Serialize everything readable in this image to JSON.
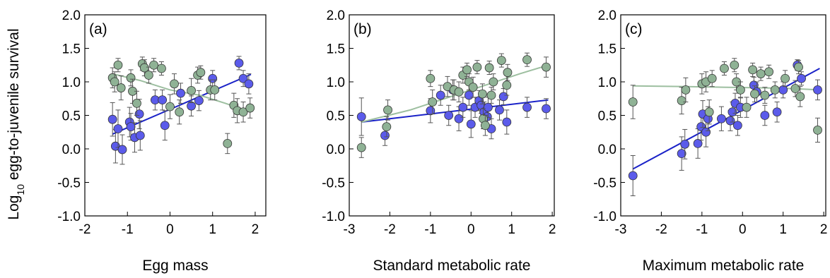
{
  "figure": {
    "ylabel_main": "Log",
    "ylabel_sub": "10",
    "ylabel_rest": " egg-to-juvenile survival"
  },
  "colors": {
    "blue_fill": "#5b5bea",
    "blue_line": "#1a22c8",
    "green_fill": "#8fb295",
    "green_line": "#9dbfa0",
    "errorbar": "#555555"
  },
  "chart_data": [
    {
      "type": "scatter",
      "panel_label": "(a)",
      "xlabel": "Egg mass",
      "xlim": [
        -2,
        2.25
      ],
      "ylim": [
        -1.0,
        2.0
      ],
      "xticks": [
        -2,
        -1,
        0,
        1,
        2
      ],
      "yticks": [
        -1.0,
        -0.5,
        0.0,
        0.5,
        1.0,
        1.5,
        2.0
      ],
      "series": [
        {
          "color": "blue",
          "points": [
            {
              "x": -1.35,
              "y": 0.44,
              "err": 0.25
            },
            {
              "x": -1.28,
              "y": 0.04,
              "err": 0.25
            },
            {
              "x": -1.22,
              "y": 0.3,
              "err": 0.28
            },
            {
              "x": -1.12,
              "y": -0.01,
              "err": 0.22
            },
            {
              "x": -0.95,
              "y": 0.4,
              "err": 0.22
            },
            {
              "x": -0.92,
              "y": 0.33,
              "err": 0.2
            },
            {
              "x": -0.83,
              "y": 0.17,
              "err": 0.22
            },
            {
              "x": -0.72,
              "y": 0.52,
              "err": 0.22
            },
            {
              "x": -0.7,
              "y": 0.2,
              "err": 0.22
            },
            {
              "x": -0.35,
              "y": 0.73,
              "err": 0.15
            },
            {
              "x": -0.18,
              "y": 0.73,
              "err": 0.15
            },
            {
              "x": -0.12,
              "y": 0.35,
              "err": 0.22
            },
            {
              "x": 0.25,
              "y": 0.83,
              "err": 0.15
            },
            {
              "x": 0.5,
              "y": 0.64,
              "err": 0.15
            },
            {
              "x": 0.68,
              "y": 0.72,
              "err": 0.15
            },
            {
              "x": 1.0,
              "y": 1.05,
              "err": 0.12
            },
            {
              "x": 1.62,
              "y": 1.28,
              "err": 0.1
            },
            {
              "x": 1.72,
              "y": 1.05,
              "err": 0.12
            },
            {
              "x": 1.85,
              "y": 0.97,
              "err": 0.15
            }
          ],
          "fit": {
            "x": [
              -1.35,
              1.9
            ],
            "y": [
              0.22,
              1.11
            ]
          }
        },
        {
          "color": "green",
          "points": [
            {
              "x": -1.35,
              "y": 1.06,
              "err": 0.15
            },
            {
              "x": -1.3,
              "y": 1.0,
              "err": 0.15
            },
            {
              "x": -1.22,
              "y": 1.25,
              "err": 0.1
            },
            {
              "x": -1.15,
              "y": 0.91,
              "err": 0.18
            },
            {
              "x": -0.92,
              "y": 1.06,
              "err": 0.12
            },
            {
              "x": -0.88,
              "y": 0.86,
              "err": 0.18
            },
            {
              "x": -0.78,
              "y": 0.68,
              "err": 0.18
            },
            {
              "x": -0.65,
              "y": 1.27,
              "err": 0.1
            },
            {
              "x": -0.6,
              "y": 1.21,
              "err": 0.12
            },
            {
              "x": -0.5,
              "y": 1.1,
              "err": 0.12
            },
            {
              "x": -0.38,
              "y": 1.25,
              "err": 0.1
            },
            {
              "x": -0.2,
              "y": 1.2,
              "err": 0.1
            },
            {
              "x": 0.0,
              "y": 0.63,
              "err": 0.18
            },
            {
              "x": 0.1,
              "y": 0.97,
              "err": 0.15
            },
            {
              "x": 0.22,
              "y": 0.55,
              "err": 0.18
            },
            {
              "x": 0.5,
              "y": 0.87,
              "err": 0.18
            },
            {
              "x": 0.65,
              "y": 1.1,
              "err": 0.12
            },
            {
              "x": 0.72,
              "y": 1.14,
              "err": 0.1
            },
            {
              "x": 0.95,
              "y": 0.88,
              "err": 0.15
            },
            {
              "x": 1.05,
              "y": 0.88,
              "err": 0.15
            },
            {
              "x": 1.35,
              "y": 0.08,
              "err": 0.15
            },
            {
              "x": 1.5,
              "y": 0.65,
              "err": 0.18
            },
            {
              "x": 1.58,
              "y": 0.57,
              "err": 0.18
            },
            {
              "x": 1.72,
              "y": 0.55,
              "err": 0.15
            },
            {
              "x": 1.88,
              "y": 0.61,
              "err": 0.15
            }
          ],
          "fit": {
            "x": [
              -1.35,
              -0.7,
              0.0,
              0.7,
              1.3,
              1.9
            ],
            "y": [
              1.12,
              1.02,
              0.88,
              0.8,
              0.68,
              0.55
            ]
          }
        }
      ]
    },
    {
      "type": "scatter",
      "panel_label": "(b)",
      "xlabel": "Standard metabolic rate",
      "xlim": [
        -3,
        2.05
      ],
      "ylim": [
        -1.0,
        2.0
      ],
      "xticks": [
        -3,
        -2,
        -1,
        0,
        1,
        2
      ],
      "yticks": [
        -1.0,
        -0.5,
        0.0,
        0.5,
        1.0,
        1.5,
        2.0
      ],
      "series": [
        {
          "color": "blue",
          "points": [
            {
              "x": -2.7,
              "y": 0.48,
              "err": 0.28
            },
            {
              "x": -2.12,
              "y": 0.2,
              "err": 0.15
            },
            {
              "x": -1.0,
              "y": 0.57,
              "err": 0.18
            },
            {
              "x": -0.75,
              "y": 0.8,
              "err": 0.15
            },
            {
              "x": -0.55,
              "y": 0.5,
              "err": 0.15
            },
            {
              "x": -0.45,
              "y": 0.88,
              "err": 0.15
            },
            {
              "x": -0.3,
              "y": 0.45,
              "err": 0.18
            },
            {
              "x": -0.2,
              "y": 0.62,
              "err": 0.15
            },
            {
              "x": -0.05,
              "y": 0.8,
              "err": 0.15
            },
            {
              "x": 0.0,
              "y": 0.37,
              "err": 0.2
            },
            {
              "x": 0.1,
              "y": 0.62,
              "err": 0.15
            },
            {
              "x": 0.2,
              "y": 0.72,
              "err": 0.15
            },
            {
              "x": 0.25,
              "y": 0.65,
              "err": 0.12
            },
            {
              "x": 0.32,
              "y": 0.55,
              "err": 0.15
            },
            {
              "x": 0.4,
              "y": 0.48,
              "err": 0.15
            },
            {
              "x": 0.42,
              "y": 0.62,
              "err": 0.15
            },
            {
              "x": 0.5,
              "y": 0.3,
              "err": 0.15
            },
            {
              "x": 0.7,
              "y": 0.58,
              "err": 0.15
            },
            {
              "x": 0.8,
              "y": 0.78,
              "err": 0.12
            },
            {
              "x": 0.88,
              "y": 0.4,
              "err": 0.18
            },
            {
              "x": 1.38,
              "y": 0.62,
              "err": 0.15
            },
            {
              "x": 1.85,
              "y": 0.6,
              "err": 0.15
            }
          ],
          "fit": {
            "x": [
              -2.7,
              1.9
            ],
            "y": [
              0.4,
              0.73
            ]
          }
        },
        {
          "color": "green",
          "points": [
            {
              "x": -2.7,
              "y": 0.02,
              "err": 0.15
            },
            {
              "x": -2.08,
              "y": 0.33,
              "err": 0.15
            },
            {
              "x": -2.05,
              "y": 0.58,
              "err": 0.15
            },
            {
              "x": -1.0,
              "y": 1.05,
              "err": 0.12
            },
            {
              "x": -0.95,
              "y": 0.7,
              "err": 0.18
            },
            {
              "x": -0.58,
              "y": 0.93,
              "err": 0.15
            },
            {
              "x": -0.42,
              "y": 0.88,
              "err": 0.15
            },
            {
              "x": -0.3,
              "y": 0.85,
              "err": 0.15
            },
            {
              "x": -0.2,
              "y": 1.1,
              "err": 0.12
            },
            {
              "x": -0.1,
              "y": 1.18,
              "err": 0.1
            },
            {
              "x": -0.05,
              "y": 1.0,
              "err": 0.12
            },
            {
              "x": 0.05,
              "y": 0.92,
              "err": 0.15
            },
            {
              "x": 0.15,
              "y": 1.22,
              "err": 0.1
            },
            {
              "x": 0.28,
              "y": 0.82,
              "err": 0.15
            },
            {
              "x": 0.3,
              "y": 0.45,
              "err": 0.15
            },
            {
              "x": 0.35,
              "y": 0.35,
              "err": 0.15
            },
            {
              "x": 0.45,
              "y": 1.21,
              "err": 0.1
            },
            {
              "x": 0.5,
              "y": 0.8,
              "err": 0.12
            },
            {
              "x": 0.55,
              "y": 1.0,
              "err": 0.12
            },
            {
              "x": 0.75,
              "y": 1.32,
              "err": 0.1
            },
            {
              "x": 0.88,
              "y": 0.95,
              "err": 0.15
            },
            {
              "x": 0.9,
              "y": 1.14,
              "err": 0.12
            },
            {
              "x": 1.38,
              "y": 1.33,
              "err": 0.1
            },
            {
              "x": 1.85,
              "y": 1.22,
              "err": 0.15
            }
          ],
          "fit": {
            "x": [
              -2.7,
              -1.5,
              -0.5,
              0.5,
              1.2,
              1.9
            ],
            "y": [
              0.4,
              0.58,
              0.78,
              0.98,
              1.12,
              1.25
            ]
          }
        }
      ]
    },
    {
      "type": "scatter",
      "panel_label": "(c)",
      "xlabel": "Maximum metabolic rate",
      "xlim": [
        -3,
        2.05
      ],
      "ylim": [
        -1.0,
        2.0
      ],
      "xticks": [
        -3,
        -2,
        -1,
        0,
        1,
        2
      ],
      "yticks": [
        -1.0,
        -0.5,
        0.0,
        0.5,
        1.0,
        1.5,
        2.0
      ],
      "series": [
        {
          "color": "blue",
          "points": [
            {
              "x": -2.7,
              "y": -0.4,
              "err": 0.3
            },
            {
              "x": -1.5,
              "y": -0.07,
              "err": 0.25
            },
            {
              "x": -1.42,
              "y": 0.07,
              "err": 0.22
            },
            {
              "x": -1.1,
              "y": 0.08,
              "err": 0.22
            },
            {
              "x": -1.02,
              "y": 0.33,
              "err": 0.2
            },
            {
              "x": -0.98,
              "y": 0.52,
              "err": 0.2
            },
            {
              "x": -0.9,
              "y": 0.25,
              "err": 0.22
            },
            {
              "x": -0.85,
              "y": 0.45,
              "err": 0.18
            },
            {
              "x": -0.52,
              "y": 0.45,
              "err": 0.18
            },
            {
              "x": -0.3,
              "y": 0.42,
              "err": 0.15
            },
            {
              "x": -0.25,
              "y": 0.55,
              "err": 0.15
            },
            {
              "x": -0.18,
              "y": 0.68,
              "err": 0.15
            },
            {
              "x": -0.12,
              "y": 0.35,
              "err": 0.15
            },
            {
              "x": -0.05,
              "y": 0.62,
              "err": 0.15
            },
            {
              "x": 0.28,
              "y": 0.95,
              "err": 0.12
            },
            {
              "x": 0.35,
              "y": 0.85,
              "err": 0.15
            },
            {
              "x": 0.55,
              "y": 0.5,
              "err": 0.15
            },
            {
              "x": 0.85,
              "y": 0.55,
              "err": 0.15
            },
            {
              "x": 1.0,
              "y": 0.88,
              "err": 0.12
            },
            {
              "x": 1.35,
              "y": 1.25,
              "err": 0.08
            },
            {
              "x": 1.45,
              "y": 1.05,
              "err": 0.1
            },
            {
              "x": 1.85,
              "y": 0.88,
              "err": 0.15
            }
          ],
          "fit": {
            "x": [
              -2.7,
              1.9
            ],
            "y": [
              -0.3,
              1.2
            ]
          }
        },
        {
          "color": "green",
          "points": [
            {
              "x": -2.7,
              "y": 0.7,
              "err": 0.25
            },
            {
              "x": -1.5,
              "y": 0.72,
              "err": 0.2
            },
            {
              "x": -1.4,
              "y": 0.88,
              "err": 0.18
            },
            {
              "x": -1.0,
              "y": 0.97,
              "err": 0.15
            },
            {
              "x": -0.9,
              "y": 1.0,
              "err": 0.15
            },
            {
              "x": -0.82,
              "y": 0.55,
              "err": 0.18
            },
            {
              "x": -0.75,
              "y": 1.05,
              "err": 0.12
            },
            {
              "x": -0.45,
              "y": 1.2,
              "err": 0.1
            },
            {
              "x": -0.2,
              "y": 1.25,
              "err": 0.1
            },
            {
              "x": -0.15,
              "y": 1.0,
              "err": 0.12
            },
            {
              "x": -0.05,
              "y": 0.88,
              "err": 0.12
            },
            {
              "x": 0.1,
              "y": 0.62,
              "err": 0.15
            },
            {
              "x": 0.25,
              "y": 1.18,
              "err": 0.1
            },
            {
              "x": 0.3,
              "y": 0.82,
              "err": 0.12
            },
            {
              "x": 0.45,
              "y": 1.12,
              "err": 0.1
            },
            {
              "x": 0.55,
              "y": 0.8,
              "err": 0.12
            },
            {
              "x": 0.65,
              "y": 1.15,
              "err": 0.1
            },
            {
              "x": 0.8,
              "y": 0.88,
              "err": 0.12
            },
            {
              "x": 1.05,
              "y": 1.05,
              "err": 0.12
            },
            {
              "x": 1.3,
              "y": 0.9,
              "err": 0.12
            },
            {
              "x": 1.38,
              "y": 1.22,
              "err": 0.1
            },
            {
              "x": 1.42,
              "y": 0.78,
              "err": 0.15
            },
            {
              "x": 1.85,
              "y": 0.28,
              "err": 0.18
            }
          ],
          "fit": {
            "x": [
              -2.7,
              -1.5,
              -0.5,
              0.5,
              1.2,
              1.9
            ],
            "y": [
              0.94,
              0.93,
              0.92,
              0.91,
              0.9,
              0.88
            ]
          }
        }
      ]
    }
  ]
}
